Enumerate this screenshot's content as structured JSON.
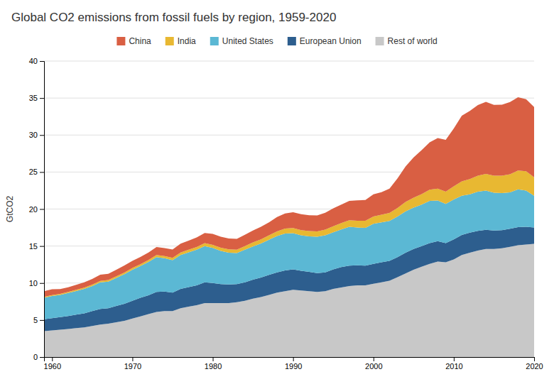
{
  "chart_data": {
    "type": "area",
    "stacked": true,
    "title": "Global CO2 emissions from fossil fuels by region, 1959-2020",
    "ylabel": "GtCO2",
    "xlim": [
      1959,
      2020
    ],
    "ylim": [
      0,
      40
    ],
    "xticks": [
      1960,
      1970,
      1980,
      1990,
      2000,
      2010,
      2020
    ],
    "yticks": [
      0,
      5,
      10,
      15,
      20,
      25,
      30,
      35,
      40
    ],
    "grid": true,
    "legend": "top",
    "x": [
      1959,
      1960,
      1961,
      1962,
      1963,
      1964,
      1965,
      1966,
      1967,
      1968,
      1969,
      1970,
      1971,
      1972,
      1973,
      1974,
      1975,
      1976,
      1977,
      1978,
      1979,
      1980,
      1981,
      1982,
      1983,
      1984,
      1985,
      1986,
      1987,
      1988,
      1989,
      1990,
      1991,
      1992,
      1993,
      1994,
      1995,
      1996,
      1997,
      1998,
      1999,
      2000,
      2001,
      2002,
      2003,
      2004,
      2005,
      2006,
      2007,
      2008,
      2009,
      2010,
      2011,
      2012,
      2013,
      2014,
      2015,
      2016,
      2017,
      2018,
      2019,
      2020
    ],
    "series": [
      {
        "name": "Rest of world",
        "color": "#c8c8c8",
        "values": [
          3.5,
          3.6,
          3.7,
          3.8,
          3.9,
          4.0,
          4.2,
          4.4,
          4.5,
          4.7,
          4.9,
          5.2,
          5.5,
          5.8,
          6.1,
          6.2,
          6.2,
          6.6,
          6.8,
          7.0,
          7.3,
          7.3,
          7.3,
          7.3,
          7.4,
          7.6,
          7.9,
          8.1,
          8.4,
          8.7,
          8.9,
          9.1,
          9.0,
          8.9,
          8.8,
          8.9,
          9.2,
          9.4,
          9.6,
          9.7,
          9.7,
          9.9,
          10.1,
          10.3,
          10.8,
          11.3,
          11.8,
          12.2,
          12.6,
          12.9,
          12.8,
          13.2,
          13.8,
          14.1,
          14.4,
          14.6,
          14.6,
          14.7,
          14.9,
          15.1,
          15.2,
          15.3
        ]
      },
      {
        "name": "European Union",
        "color": "#2d5e8e",
        "values": [
          1.6,
          1.65,
          1.7,
          1.75,
          1.82,
          1.9,
          2.0,
          2.1,
          2.1,
          2.2,
          2.3,
          2.4,
          2.5,
          2.55,
          2.7,
          2.65,
          2.5,
          2.6,
          2.65,
          2.7,
          2.8,
          2.7,
          2.55,
          2.5,
          2.45,
          2.5,
          2.55,
          2.65,
          2.7,
          2.75,
          2.8,
          2.75,
          2.65,
          2.6,
          2.55,
          2.55,
          2.65,
          2.75,
          2.75,
          2.7,
          2.65,
          2.7,
          2.7,
          2.7,
          2.7,
          2.8,
          2.8,
          2.8,
          2.8,
          2.75,
          2.6,
          2.7,
          2.7,
          2.7,
          2.65,
          2.6,
          2.5,
          2.45,
          2.45,
          2.45,
          2.4,
          2.2
        ]
      },
      {
        "name": "United States",
        "color": "#5bb8d4",
        "values": [
          2.9,
          3.0,
          3.0,
          3.1,
          3.2,
          3.3,
          3.4,
          3.6,
          3.6,
          3.8,
          4.0,
          4.2,
          4.3,
          4.5,
          4.7,
          4.5,
          4.4,
          4.6,
          4.7,
          4.8,
          4.9,
          4.75,
          4.5,
          4.3,
          4.2,
          4.4,
          4.5,
          4.6,
          4.75,
          4.9,
          5.0,
          4.9,
          4.8,
          4.8,
          4.9,
          5.0,
          5.0,
          5.1,
          5.25,
          5.1,
          5.1,
          5.4,
          5.4,
          5.4,
          5.5,
          5.6,
          5.6,
          5.6,
          5.7,
          5.5,
          5.3,
          5.4,
          5.3,
          5.2,
          5.3,
          5.3,
          5.1,
          5.0,
          4.9,
          5.1,
          4.9,
          4.3
        ]
      },
      {
        "name": "India",
        "color": "#e8b832",
        "values": [
          0.12,
          0.13,
          0.14,
          0.15,
          0.16,
          0.17,
          0.18,
          0.19,
          0.2,
          0.21,
          0.22,
          0.24,
          0.25,
          0.27,
          0.29,
          0.3,
          0.31,
          0.33,
          0.35,
          0.37,
          0.39,
          0.41,
          0.43,
          0.45,
          0.47,
          0.5,
          0.53,
          0.56,
          0.59,
          0.63,
          0.66,
          0.68,
          0.7,
          0.72,
          0.74,
          0.77,
          0.82,
          0.86,
          0.9,
          0.92,
          0.96,
          1.0,
          1.04,
          1.08,
          1.15,
          1.25,
          1.33,
          1.42,
          1.52,
          1.6,
          1.65,
          1.78,
          1.95,
          2.05,
          2.15,
          2.25,
          2.3,
          2.35,
          2.45,
          2.55,
          2.6,
          2.5
        ]
      },
      {
        "name": "China",
        "color": "#d95f43",
        "values": [
          0.78,
          0.79,
          0.65,
          0.62,
          0.68,
          0.72,
          0.77,
          0.83,
          0.85,
          0.9,
          0.95,
          0.95,
          0.97,
          1.01,
          1.08,
          1.07,
          1.12,
          1.19,
          1.24,
          1.3,
          1.38,
          1.48,
          1.47,
          1.48,
          1.44,
          1.53,
          1.62,
          1.68,
          1.75,
          1.93,
          2.05,
          2.15,
          2.15,
          2.14,
          2.15,
          2.28,
          2.42,
          2.5,
          2.6,
          2.75,
          2.82,
          2.98,
          3.05,
          3.28,
          4.0,
          4.8,
          5.45,
          5.95,
          6.4,
          6.85,
          7.0,
          7.8,
          8.87,
          9.2,
          9.55,
          9.74,
          9.58,
          9.6,
          9.75,
          9.9,
          9.75,
          9.5
        ]
      }
    ]
  }
}
